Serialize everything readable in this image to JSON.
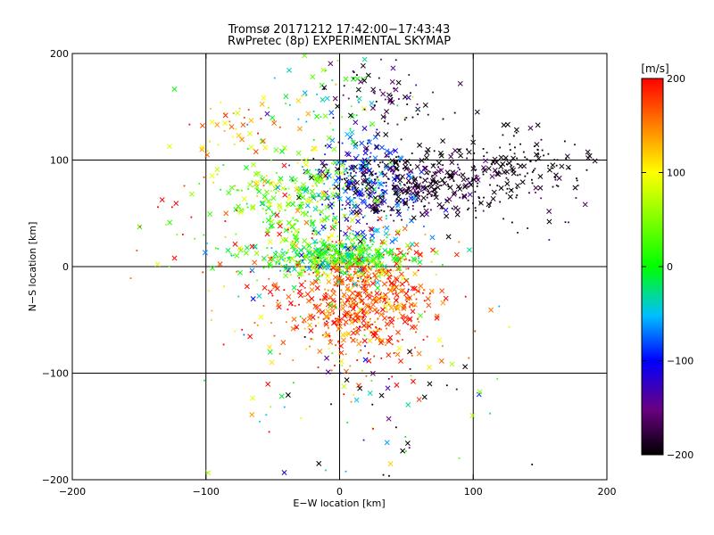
{
  "title": {
    "line1": "Tromsø 20171212 17:42:00−17:43:43",
    "line2": "RwPretec (8p) EXPERIMENTAL SKYMAP"
  },
  "chart_data": {
    "type": "scatter",
    "title": "Tromsø 20171212 17:42:00−17:43:43 RwPretec (8p) EXPERIMENTAL SKYMAP",
    "xlabel": "E−W location [km]",
    "ylabel": "N−S location [km]",
    "xlim": [
      -200,
      200
    ],
    "ylim": [
      -200,
      200
    ],
    "x_ticks": [
      -200,
      -100,
      0,
      100,
      200
    ],
    "y_ticks": [
      -200,
      -100,
      0,
      100,
      200
    ],
    "x_tick_labels": [
      "−200",
      "−100",
      "0",
      "100",
      "200"
    ],
    "y_tick_labels": [
      "200",
      "100",
      "0",
      "−100",
      "−200"
    ],
    "grid": true,
    "markers": [
      "x",
      "dot"
    ],
    "colorbar": {
      "label": "[m/s]",
      "range": [
        -200,
        200
      ],
      "ticks": [
        200,
        100,
        0,
        -100,
        -200
      ],
      "tick_labels": [
        "200",
        "100",
        "0",
        "−100",
        "−200"
      ],
      "colormap": [
        "#000000",
        "#6a0080",
        "#0000ff",
        "#00ffff",
        "#00ff00",
        "#ffff00",
        "#ff0000"
      ]
    },
    "clusters": [
      {
        "x": 15,
        "y": -30,
        "sx": 30,
        "sy": 28,
        "v": 170,
        "sv": 35,
        "n": 700
      },
      {
        "x": -5,
        "y": 10,
        "sx": 30,
        "sy": 10,
        "v": 10,
        "sv": 45,
        "n": 420
      },
      {
        "x": 20,
        "y": 75,
        "sx": 18,
        "sy": 22,
        "v": -90,
        "sv": 40,
        "n": 280
      },
      {
        "x": 60,
        "y": 78,
        "sx": 35,
        "sy": 16,
        "v": -185,
        "sv": 20,
        "n": 340
      },
      {
        "x": 135,
        "y": 97,
        "sx": 30,
        "sy": 14,
        "v": -195,
        "sv": 10,
        "n": 120
      },
      {
        "x": -35,
        "y": 65,
        "sx": 25,
        "sy": 18,
        "v": 40,
        "sv": 45,
        "n": 230
      },
      {
        "x": -5,
        "y": 150,
        "sx": 25,
        "sy": 25,
        "v": 10,
        "sv": 70,
        "n": 70
      },
      {
        "x": 30,
        "y": 160,
        "sx": 25,
        "sy": 18,
        "v": -180,
        "sv": 25,
        "n": 70
      },
      {
        "x": -80,
        "y": 135,
        "sx": 15,
        "sy": 15,
        "v": 130,
        "sv": 30,
        "n": 35
      },
      {
        "x": -80,
        "y": 30,
        "sx": 35,
        "sy": 45,
        "v": 110,
        "sv": 80,
        "n": 90
      },
      {
        "x": 30,
        "y": -130,
        "sx": 40,
        "sy": 30,
        "v": -100,
        "sv": 120,
        "n": 45
      },
      {
        "x": 0,
        "y": -80,
        "sx": 60,
        "sy": 80,
        "v": 0,
        "sv": 160,
        "n": 80
      },
      {
        "x": 160,
        "y": 70,
        "sx": 25,
        "sy": 25,
        "v": -180,
        "sv": 30,
        "n": 25
      }
    ]
  }
}
